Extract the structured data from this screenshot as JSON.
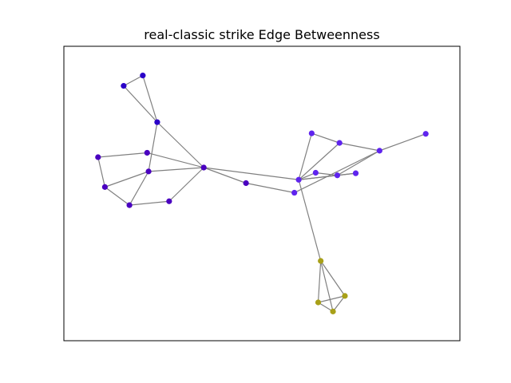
{
  "title": "real-classic strike Edge Betweenness",
  "colors": {
    "frame": "#000000",
    "edge": "#808080"
  },
  "chart_data": {
    "type": "network",
    "title": "real-classic strike Edge Betweenness",
    "xlim": [
      0,
      1
    ],
    "ylim": [
      0,
      1
    ],
    "axes_ticks": false,
    "communities": [
      {
        "id": 0,
        "color": "#2a00c8"
      },
      {
        "id": 1,
        "color": "#4a00c0"
      },
      {
        "id": 2,
        "color": "#5f24ee"
      },
      {
        "id": 3,
        "color": "#a8a018"
      }
    ],
    "nodes": [
      {
        "id": 0,
        "x": 0.17,
        "y": 0.955,
        "community": 0
      },
      {
        "id": 1,
        "x": 0.117,
        "y": 0.915,
        "community": 0
      },
      {
        "id": 2,
        "x": 0.21,
        "y": 0.775,
        "community": 0
      },
      {
        "id": 3,
        "x": 0.339,
        "y": 0.6,
        "community": 1
      },
      {
        "id": 4,
        "x": 0.182,
        "y": 0.657,
        "community": 1
      },
      {
        "id": 5,
        "x": 0.046,
        "y": 0.64,
        "community": 1
      },
      {
        "id": 6,
        "x": 0.186,
        "y": 0.585,
        "community": 1
      },
      {
        "id": 7,
        "x": 0.065,
        "y": 0.525,
        "community": 1
      },
      {
        "id": 8,
        "x": 0.133,
        "y": 0.455,
        "community": 1
      },
      {
        "id": 9,
        "x": 0.243,
        "y": 0.47,
        "community": 1
      },
      {
        "id": 10,
        "x": 0.456,
        "y": 0.54,
        "community": 1
      },
      {
        "id": 11,
        "x": 0.602,
        "y": 0.553,
        "community": 2
      },
      {
        "id": 12,
        "x": 0.638,
        "y": 0.732,
        "community": 2
      },
      {
        "id": 13,
        "x": 0.715,
        "y": 0.695,
        "community": 2
      },
      {
        "id": 14,
        "x": 0.826,
        "y": 0.665,
        "community": 2
      },
      {
        "id": 15,
        "x": 0.954,
        "y": 0.73,
        "community": 2
      },
      {
        "id": 16,
        "x": 0.649,
        "y": 0.58,
        "community": 2
      },
      {
        "id": 17,
        "x": 0.709,
        "y": 0.57,
        "community": 2
      },
      {
        "id": 18,
        "x": 0.76,
        "y": 0.578,
        "community": 2
      },
      {
        "id": 19,
        "x": 0.59,
        "y": 0.503,
        "community": 2
      },
      {
        "id": 20,
        "x": 0.663,
        "y": 0.24,
        "community": 3
      },
      {
        "id": 21,
        "x": 0.73,
        "y": 0.105,
        "community": 3
      },
      {
        "id": 22,
        "x": 0.656,
        "y": 0.08,
        "community": 3
      },
      {
        "id": 23,
        "x": 0.697,
        "y": 0.045,
        "community": 3
      }
    ],
    "edges": [
      [
        0,
        1
      ],
      [
        0,
        2
      ],
      [
        1,
        2
      ],
      [
        2,
        3
      ],
      [
        2,
        6
      ],
      [
        4,
        5
      ],
      [
        4,
        3
      ],
      [
        5,
        7
      ],
      [
        6,
        7
      ],
      [
        6,
        3
      ],
      [
        6,
        8
      ],
      [
        7,
        8
      ],
      [
        8,
        9
      ],
      [
        9,
        3
      ],
      [
        3,
        10
      ],
      [
        10,
        19
      ],
      [
        3,
        11
      ],
      [
        11,
        12
      ],
      [
        11,
        13
      ],
      [
        11,
        16
      ],
      [
        11,
        17
      ],
      [
        11,
        18
      ],
      [
        12,
        13
      ],
      [
        13,
        14
      ],
      [
        14,
        15
      ],
      [
        14,
        17
      ],
      [
        14,
        19
      ],
      [
        16,
        17
      ],
      [
        17,
        18
      ],
      [
        11,
        20
      ],
      [
        20,
        21
      ],
      [
        20,
        22
      ],
      [
        20,
        23
      ],
      [
        21,
        22
      ],
      [
        21,
        23
      ],
      [
        22,
        23
      ]
    ]
  }
}
